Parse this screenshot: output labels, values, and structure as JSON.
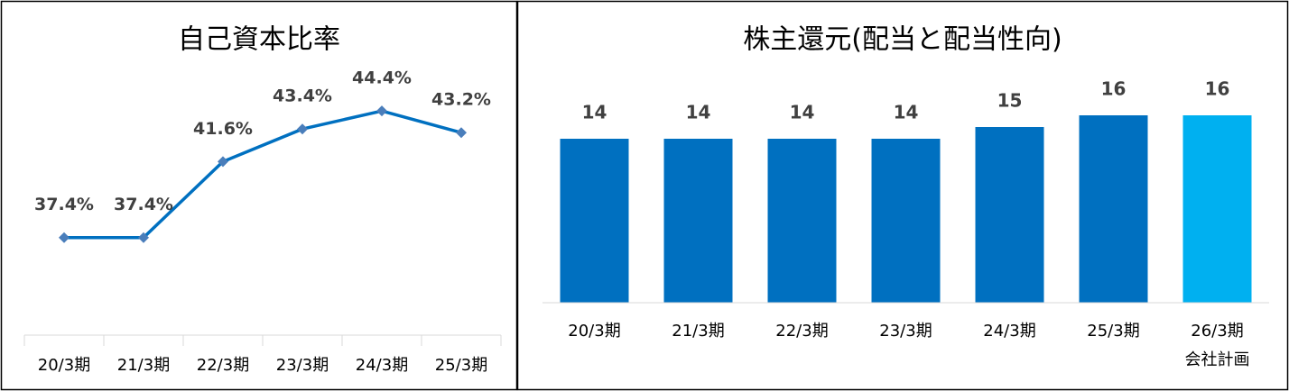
{
  "chart_data": [
    {
      "type": "line",
      "title": "自己資本比率",
      "categories": [
        "20/3期",
        "21/3期",
        "22/3期",
        "23/3期",
        "24/3期",
        "25/3期"
      ],
      "series": [
        {
          "color": "#0070c0",
          "marker_color": "#4a7ebb",
          "values": [
            37.4,
            37.4,
            41.6,
            43.4,
            44.4,
            43.2
          ],
          "value_labels": [
            "37.4%",
            "37.4%",
            "41.6%",
            "43.4%",
            "44.4%",
            "43.2%"
          ]
        }
      ],
      "ylim": [
        34,
        46
      ]
    },
    {
      "type": "bar",
      "title": "株主還元(配当と配当性向)",
      "categories": [
        "20/3期",
        "21/3期",
        "22/3期",
        "23/3期",
        "24/3期",
        "25/3期",
        "26/3期\n会社計画"
      ],
      "values": [
        14,
        14,
        14,
        14,
        15,
        16,
        16
      ],
      "colors": [
        "#0070c0",
        "#0070c0",
        "#0070c0",
        "#0070c0",
        "#0070c0",
        "#0070c0",
        "#00b0f0"
      ],
      "ylim": [
        0,
        18
      ]
    }
  ]
}
